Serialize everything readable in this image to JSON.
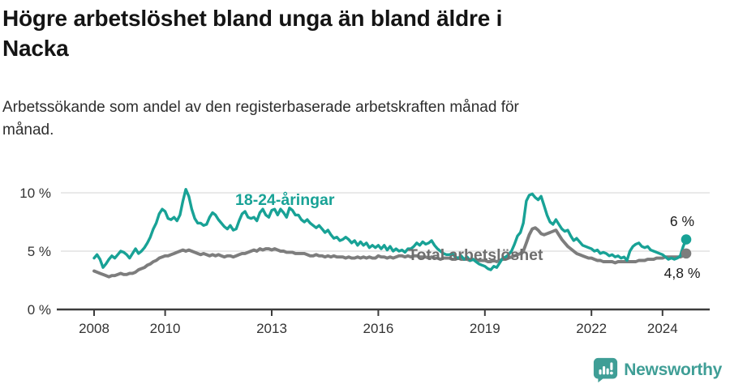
{
  "header": {
    "title_lines": [
      "Högre arbetslöshet bland unga än bland äldre i",
      "Nacka"
    ],
    "subtitle_lines": [
      "Arbetssökande som andel av den registerbaserade arbetskraften månad för",
      "månad."
    ]
  },
  "footer": {
    "brand": "Newsworthy",
    "brand_color": "#3F9E96"
  },
  "chart_data": {
    "type": "line",
    "title": "Högre arbetslöshet bland unga än bland äldre i Nacka",
    "subtitle": "Arbetssökande som andel av den registerbaserade arbetskraften månad för månad.",
    "unit": "%",
    "x_start_year": 2008,
    "x_step_months": 1,
    "x_ticks": [
      2008,
      2010,
      2013,
      2016,
      2019,
      2022,
      2024
    ],
    "y_ticks": [
      {
        "value": 0,
        "label": "0 %"
      },
      {
        "value": 5,
        "label": "5 %"
      },
      {
        "value": 10,
        "label": "10 %"
      }
    ],
    "ylim": [
      0,
      10.8
    ],
    "grid": "horizontal",
    "legend_position": "inline-labels",
    "axis_color": "#3c3c3c",
    "grid_color": "#dcdcdc",
    "tick_label_color": "#333333",
    "annotation_color": "#1a1a1a",
    "series": [
      {
        "name": "18-24-åringar",
        "color": "#18A296",
        "label_color": "#18A296",
        "end_label": "6 %",
        "values": [
          4.4,
          4.7,
          4.3,
          3.6,
          3.9,
          4.3,
          4.6,
          4.4,
          4.7,
          5.0,
          4.9,
          4.7,
          4.4,
          4.8,
          5.2,
          4.8,
          5.0,
          5.3,
          5.7,
          6.2,
          6.9,
          7.4,
          8.2,
          8.6,
          8.4,
          7.8,
          7.7,
          7.9,
          7.6,
          8.1,
          9.3,
          10.3,
          9.7,
          8.6,
          7.8,
          7.4,
          7.4,
          7.2,
          7.3,
          7.9,
          8.3,
          8.1,
          7.7,
          7.4,
          7.1,
          6.9,
          7.2,
          6.8,
          6.9,
          7.6,
          8.2,
          8.4,
          7.9,
          7.8,
          7.9,
          7.6,
          8.3,
          8.6,
          8.1,
          7.9,
          8.5,
          8.6,
          8.1,
          8.6,
          8.3,
          7.9,
          8.7,
          8.5,
          8.1,
          8.1,
          7.7,
          7.5,
          7.7,
          7.4,
          7.2,
          7.0,
          7.2,
          6.9,
          6.6,
          6.8,
          6.4,
          6.1,
          6.2,
          5.9,
          6.0,
          6.2,
          6.0,
          5.7,
          5.9,
          5.5,
          5.8,
          5.5,
          5.7,
          5.3,
          5.5,
          5.3,
          5.5,
          5.2,
          5.5,
          5.1,
          5.4,
          5.0,
          5.2,
          5.0,
          5.1,
          4.9,
          5.2,
          5.2,
          5.4,
          5.7,
          5.5,
          5.8,
          5.6,
          5.7,
          5.9,
          5.5,
          5.2,
          5.0,
          4.8,
          4.7,
          4.7,
          4.8,
          4.5,
          4.4,
          4.6,
          4.3,
          4.5,
          4.2,
          4.3,
          4.1,
          3.9,
          3.8,
          3.7,
          3.5,
          3.4,
          3.7,
          3.6,
          4.0,
          4.4,
          4.5,
          4.7,
          5.0,
          5.6,
          6.3,
          6.6,
          7.4,
          9.3,
          9.8,
          9.9,
          9.6,
          9.4,
          9.7,
          8.9,
          8.1,
          7.5,
          7.3,
          7.7,
          7.3,
          6.9,
          6.7,
          6.8,
          6.3,
          5.9,
          6.1,
          5.8,
          5.5,
          5.4,
          5.3,
          5.2,
          5.0,
          5.1,
          4.8,
          4.9,
          4.8,
          4.6,
          4.7,
          4.5,
          4.6,
          4.4,
          4.5,
          4.2,
          5.0,
          5.4,
          5.6,
          5.7,
          5.4,
          5.3,
          5.4,
          5.1,
          5.0,
          4.9,
          4.8,
          4.7,
          4.5,
          4.3,
          4.4,
          4.3,
          4.4,
          4.6,
          5.4,
          6.0
        ]
      },
      {
        "name": "Total arbetslöshet",
        "color": "#7D7D7D",
        "label_color": "#6E6E6E",
        "end_label": "4,8 %",
        "values": [
          3.3,
          3.2,
          3.1,
          3.0,
          2.9,
          2.8,
          2.9,
          2.9,
          3.0,
          3.1,
          3.0,
          3.0,
          3.1,
          3.1,
          3.2,
          3.4,
          3.5,
          3.6,
          3.8,
          3.9,
          4.1,
          4.2,
          4.4,
          4.5,
          4.6,
          4.6,
          4.7,
          4.8,
          4.9,
          5.0,
          5.1,
          5.0,
          5.1,
          5.0,
          4.9,
          4.8,
          4.7,
          4.8,
          4.7,
          4.6,
          4.7,
          4.6,
          4.7,
          4.6,
          4.5,
          4.6,
          4.6,
          4.5,
          4.6,
          4.7,
          4.8,
          4.8,
          4.9,
          5.0,
          5.1,
          5.0,
          5.2,
          5.1,
          5.2,
          5.2,
          5.1,
          5.2,
          5.1,
          5.0,
          5.0,
          4.9,
          4.9,
          4.9,
          4.8,
          4.8,
          4.8,
          4.8,
          4.7,
          4.6,
          4.6,
          4.7,
          4.6,
          4.6,
          4.5,
          4.6,
          4.5,
          4.6,
          4.5,
          4.5,
          4.5,
          4.4,
          4.5,
          4.4,
          4.4,
          4.5,
          4.4,
          4.5,
          4.4,
          4.5,
          4.4,
          4.4,
          4.6,
          4.5,
          4.5,
          4.4,
          4.5,
          4.4,
          4.5,
          4.6,
          4.6,
          4.5,
          4.6,
          4.5,
          4.6,
          4.6,
          4.5,
          4.5,
          4.5,
          4.4,
          4.5,
          4.4,
          4.4,
          4.3,
          4.4,
          4.4,
          4.4,
          4.3,
          4.3,
          4.4,
          4.3,
          4.3,
          4.3,
          4.2,
          4.3,
          4.2,
          4.2,
          4.2,
          4.2,
          4.1,
          4.1,
          4.2,
          4.1,
          4.2,
          4.3,
          4.3,
          4.4,
          4.5,
          4.6,
          4.7,
          4.8,
          5.0,
          5.7,
          6.4,
          6.9,
          7.0,
          6.8,
          6.5,
          6.4,
          6.5,
          6.6,
          6.7,
          6.8,
          6.4,
          6.0,
          5.7,
          5.4,
          5.2,
          5.0,
          4.8,
          4.7,
          4.6,
          4.5,
          4.4,
          4.4,
          4.3,
          4.2,
          4.2,
          4.1,
          4.1,
          4.1,
          4.1,
          4.0,
          4.1,
          4.1,
          4.1,
          4.1,
          4.1,
          4.1,
          4.1,
          4.2,
          4.2,
          4.2,
          4.3,
          4.3,
          4.3,
          4.4,
          4.4,
          4.4,
          4.5,
          4.5,
          4.5,
          4.5,
          4.5,
          4.5,
          4.6,
          4.8
        ]
      }
    ]
  }
}
